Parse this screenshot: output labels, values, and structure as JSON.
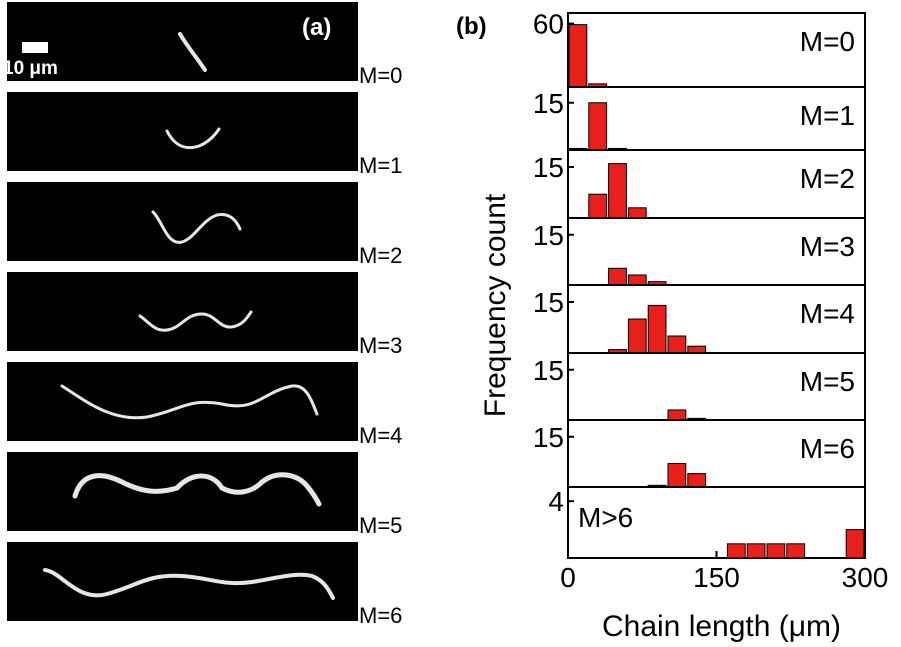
{
  "panel_a": {
    "label": "(a)",
    "scale_bar_text": "10 μm",
    "rows": [
      "M=0",
      "M=1",
      "M=2",
      "M=3",
      "M=4",
      "M=5",
      "M=6"
    ]
  },
  "chart_data": {
    "type": "bar",
    "panel_label": "(b)",
    "xlabel": "Chain length (μm)",
    "ylabel": "Frequency count",
    "xlim": [
      0,
      300
    ],
    "xticks": [
      0,
      150,
      300
    ],
    "bar_width": 20,
    "bar_color": "#e8201c",
    "panels": [
      {
        "name": "M=0",
        "ytick": 60,
        "ymax": 70,
        "bars": [
          {
            "x": 10,
            "y": 59
          },
          {
            "x": 30,
            "y": 3
          }
        ]
      },
      {
        "name": "M=1",
        "ytick": 15,
        "ymax": 20,
        "bars": [
          {
            "x": 10,
            "y": 0.5
          },
          {
            "x": 30,
            "y": 15
          },
          {
            "x": 50,
            "y": 0.5
          }
        ]
      },
      {
        "name": "M=2",
        "ytick": 15,
        "ymax": 20,
        "bars": [
          {
            "x": 30,
            "y": 7
          },
          {
            "x": 50,
            "y": 16
          },
          {
            "x": 70,
            "y": 3
          }
        ]
      },
      {
        "name": "M=3",
        "ytick": 15,
        "ymax": 20,
        "bars": [
          {
            "x": 50,
            "y": 5
          },
          {
            "x": 70,
            "y": 3
          },
          {
            "x": 90,
            "y": 1
          }
        ]
      },
      {
        "name": "M=4",
        "ytick": 15,
        "ymax": 20,
        "bars": [
          {
            "x": 50,
            "y": 1
          },
          {
            "x": 70,
            "y": 10
          },
          {
            "x": 90,
            "y": 14
          },
          {
            "x": 110,
            "y": 5
          },
          {
            "x": 130,
            "y": 2
          }
        ]
      },
      {
        "name": "M=5",
        "ytick": 15,
        "ymax": 20,
        "bars": [
          {
            "x": 110,
            "y": 3
          },
          {
            "x": 130,
            "y": 0.5
          }
        ]
      },
      {
        "name": "M=6",
        "ytick": 15,
        "ymax": 20,
        "bars": [
          {
            "x": 90,
            "y": 0.5
          },
          {
            "x": 110,
            "y": 7
          },
          {
            "x": 130,
            "y": 4
          }
        ]
      },
      {
        "name": "M>6",
        "ytick": 4,
        "ymax": 5,
        "bars": [
          {
            "x": 170,
            "y": 1
          },
          {
            "x": 190,
            "y": 1
          },
          {
            "x": 210,
            "y": 1
          },
          {
            "x": 230,
            "y": 1
          },
          {
            "x": 290,
            "y": 2
          }
        ]
      }
    ]
  }
}
